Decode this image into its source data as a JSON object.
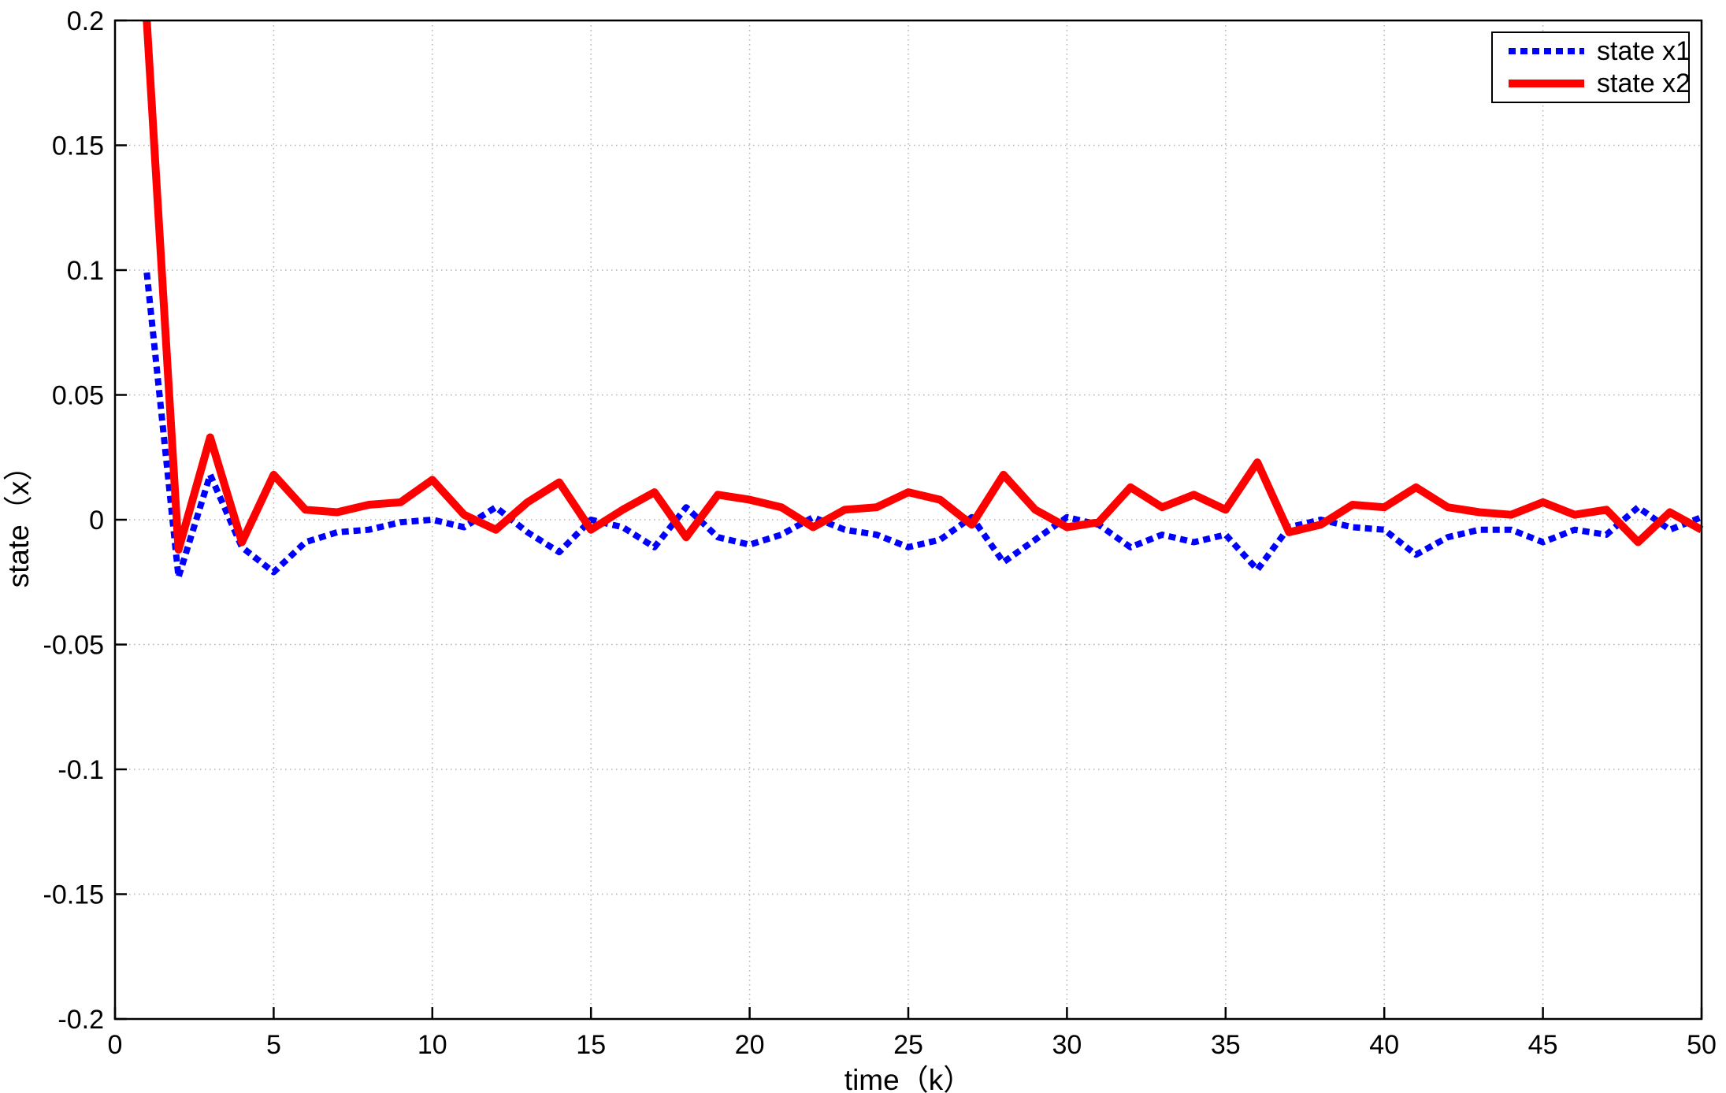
{
  "figure": {
    "background": "#ffffff",
    "axes_color": "#000000"
  },
  "legend": {
    "position": "top-right",
    "entries": [
      {
        "label": "state x1",
        "color": "#0000ff",
        "style": "dotted"
      },
      {
        "label": "state x2",
        "color": "#ff0000",
        "style": "solid"
      }
    ]
  },
  "chart_data": {
    "type": "line",
    "title": "",
    "xlabel": "time（k）",
    "ylabel": "state（x）",
    "xlim": [
      0,
      50
    ],
    "ylim": [
      -0.2,
      0.2
    ],
    "grid": true,
    "grid_color": "#b2b2b2",
    "legend_position": "top-right",
    "xticks": [
      0,
      5,
      10,
      15,
      20,
      25,
      30,
      35,
      40,
      45,
      50
    ],
    "xtick_labels": [
      "0",
      "5",
      "10",
      "15",
      "20",
      "25",
      "30",
      "35",
      "40",
      "45",
      "50"
    ],
    "yticks": [
      -0.2,
      -0.15,
      -0.1,
      -0.05,
      0,
      0.05,
      0.1,
      0.15,
      0.2
    ],
    "ytick_labels": [
      "-0.2",
      "-0.15",
      "-0.1",
      "-0.05",
      "0",
      "0.05",
      "0.1",
      "0.15",
      "0.2"
    ],
    "x_start": 1,
    "x_step": 1,
    "series": [
      {
        "name": "state x1",
        "color": "#0000ff",
        "style": "dotted",
        "width": 8,
        "dash": "9 6",
        "values": [
          0.099,
          -0.023,
          0.018,
          -0.011,
          -0.021,
          -0.009,
          -0.005,
          -0.004,
          -0.001,
          0,
          -0.003,
          0.005,
          -0.005,
          -0.013,
          0,
          -0.003,
          -0.011,
          0.005,
          -0.007,
          -0.01,
          -0.006,
          0.001,
          -0.004,
          -0.006,
          -0.011,
          -0.008,
          0.001,
          -0.017,
          -0.008,
          0.001,
          -0.002,
          -0.011,
          -0.006,
          -0.009,
          -0.006,
          -0.02,
          -0.003,
          0,
          -0.003,
          -0.004,
          -0.014,
          -0.007,
          -0.004,
          -0.004,
          -0.009,
          -0.004,
          -0.006,
          0.005,
          -0.004,
          0.001
        ]
      },
      {
        "name": "state x2",
        "color": "#ff0000",
        "style": "solid",
        "width": 10,
        "dash": "",
        "values": [
          0.2,
          -0.012,
          0.033,
          -0.009,
          0.018,
          0.004,
          0.003,
          0.006,
          0.007,
          0.016,
          0.002,
          -0.004,
          0.007,
          0.015,
          -0.004,
          0.004,
          0.011,
          -0.007,
          0.01,
          0.008,
          0.005,
          -0.003,
          0.004,
          0.005,
          0.011,
          0.008,
          -0.002,
          0.018,
          0.004,
          -0.003,
          -0.001,
          0.013,
          0.005,
          0.01,
          0.004,
          0.023,
          -0.005,
          -0.002,
          0.006,
          0.005,
          0.013,
          0.005,
          0.003,
          0.002,
          0.007,
          0.002,
          0.004,
          -0.009,
          0.003,
          -0.004
        ]
      }
    ]
  }
}
